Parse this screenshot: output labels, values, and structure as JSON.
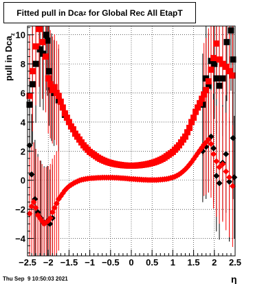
{
  "chart_data": {
    "type": "scatter",
    "title_main": "Fitted pull in Dca",
    "title_sub": "z",
    "title_tail": " for Global Rec All EtapT",
    "xlabel": "η",
    "ylabel_main": "pull in Dca",
    "ylabel_sub": "z",
    "xlim": [
      -2.5,
      2.5
    ],
    "ylim": [
      -5.2,
      10.6
    ],
    "grid": true,
    "x_ticks": [
      -2.5,
      -2,
      -1.5,
      -1,
      -0.5,
      0,
      0.5,
      1,
      1.5,
      2,
      2.5
    ],
    "x_tick_labels": [
      "−2.5",
      "−2",
      "−1.5",
      "−1",
      "−0.5",
      "0",
      "0.5",
      "1",
      "1.5",
      "2",
      "2.5"
    ],
    "y_ticks": [
      -4,
      -2,
      0,
      2,
      4,
      6,
      8,
      10
    ],
    "y_tick_labels": [
      "−4",
      "−2",
      "0",
      "2",
      "4",
      "6",
      "8",
      "10"
    ],
    "series": [
      {
        "marker": "square",
        "color": "#000000",
        "points": [
          [
            -2.45,
            5.2
          ],
          [
            -2.38,
            6.6
          ],
          [
            -2.3,
            8.0
          ],
          [
            -2.2,
            9.0
          ],
          [
            -2.12,
            8.7
          ],
          [
            -2.05,
            10.0
          ],
          [
            -2.02,
            9.6
          ],
          [
            -1.98,
            7.5
          ],
          [
            -1.92,
            6.4
          ],
          [
            -1.86,
            6.0
          ],
          [
            -1.75,
            5.5
          ],
          [
            -1.6,
            4.5
          ],
          [
            1.72,
            5.2
          ],
          [
            1.8,
            7.0
          ],
          [
            1.86,
            6.5
          ],
          [
            1.92,
            8.2
          ],
          [
            2.0,
            8.0
          ],
          [
            2.05,
            7.0
          ],
          [
            2.12,
            6.5
          ],
          [
            2.2,
            7.0
          ],
          [
            2.3,
            9.5
          ],
          [
            2.4,
            10.3
          ],
          [
            2.45,
            8.3
          ]
        ]
      },
      {
        "marker": "square",
        "color": "#ff0000",
        "points": [
          [
            -2.45,
            5.8
          ],
          [
            -2.38,
            7.5
          ],
          [
            -2.3,
            9.2
          ],
          [
            -2.22,
            10.4
          ],
          [
            -2.14,
            9.5
          ],
          [
            -2.06,
            8.5
          ],
          [
            -2.0,
            7.0
          ],
          [
            -1.95,
            6.6
          ],
          [
            -1.9,
            6.2
          ],
          [
            -1.85,
            6.4
          ],
          [
            -1.8,
            6.0
          ],
          [
            -1.75,
            5.8
          ],
          [
            -1.7,
            5.4
          ],
          [
            -1.65,
            5.0
          ],
          [
            -1.6,
            4.6
          ],
          [
            -1.55,
            4.3
          ],
          [
            -1.5,
            4.0
          ],
          [
            -1.45,
            3.7
          ],
          [
            -1.4,
            3.5
          ],
          [
            -1.35,
            3.2
          ],
          [
            -1.3,
            3.0
          ],
          [
            -1.25,
            2.8
          ],
          [
            -1.2,
            2.6
          ],
          [
            -1.15,
            2.4
          ],
          [
            -1.1,
            2.25
          ],
          [
            -1.05,
            2.1
          ],
          [
            -1.0,
            1.95
          ],
          [
            -0.95,
            1.85
          ],
          [
            -0.9,
            1.75
          ],
          [
            -0.85,
            1.65
          ],
          [
            -0.8,
            1.55
          ],
          [
            -0.75,
            1.47
          ],
          [
            -0.7,
            1.4
          ],
          [
            -0.65,
            1.34
          ],
          [
            -0.6,
            1.28
          ],
          [
            -0.55,
            1.23
          ],
          [
            -0.5,
            1.19
          ],
          [
            -0.45,
            1.15
          ],
          [
            -0.4,
            1.12
          ],
          [
            -0.35,
            1.09
          ],
          [
            -0.3,
            1.07
          ],
          [
            -0.25,
            1.05
          ],
          [
            -0.2,
            1.03
          ],
          [
            -0.15,
            1.02
          ],
          [
            -0.1,
            1.01
          ],
          [
            -0.05,
            1.0
          ],
          [
            0.0,
            1.0
          ],
          [
            0.05,
            1.0
          ],
          [
            0.1,
            1.01
          ],
          [
            0.15,
            1.02
          ],
          [
            0.2,
            1.03
          ],
          [
            0.25,
            1.05
          ],
          [
            0.3,
            1.07
          ],
          [
            0.35,
            1.09
          ],
          [
            0.4,
            1.12
          ],
          [
            0.45,
            1.15
          ],
          [
            0.5,
            1.19
          ],
          [
            0.55,
            1.23
          ],
          [
            0.6,
            1.28
          ],
          [
            0.65,
            1.34
          ],
          [
            0.7,
            1.4
          ],
          [
            0.75,
            1.47
          ],
          [
            0.8,
            1.55
          ],
          [
            0.85,
            1.65
          ],
          [
            0.9,
            1.75
          ],
          [
            0.95,
            1.85
          ],
          [
            1.0,
            1.95
          ],
          [
            1.05,
            2.1
          ],
          [
            1.1,
            2.25
          ],
          [
            1.15,
            2.4
          ],
          [
            1.2,
            2.6
          ],
          [
            1.25,
            2.8
          ],
          [
            1.3,
            3.0
          ],
          [
            1.35,
            3.3
          ],
          [
            1.4,
            3.6
          ],
          [
            1.45,
            4.0
          ],
          [
            1.5,
            4.3
          ],
          [
            1.55,
            4.7
          ],
          [
            1.6,
            5.0
          ],
          [
            1.65,
            5.3
          ],
          [
            1.7,
            5.6
          ],
          [
            1.75,
            5.9
          ],
          [
            1.8,
            6.2
          ],
          [
            1.86,
            6.8
          ],
          [
            1.92,
            7.6
          ],
          [
            1.98,
            8.4
          ],
          [
            2.05,
            9.4
          ],
          [
            2.12,
            8.3
          ],
          [
            2.2,
            8.0
          ],
          [
            2.28,
            7.8
          ],
          [
            2.36,
            7.5
          ],
          [
            2.44,
            7.2
          ]
        ]
      },
      {
        "marker": "diamond",
        "color": "#000000",
        "points": [
          [
            -2.45,
            2.4
          ],
          [
            -2.4,
            0.4
          ],
          [
            -2.32,
            -1.3
          ],
          [
            -2.25,
            -2.2
          ],
          [
            -2.18,
            -2.6
          ],
          [
            -2.1,
            -2.9
          ],
          [
            -2.02,
            -2.8
          ],
          [
            -1.96,
            -3.0
          ],
          [
            -1.9,
            -2.6
          ],
          [
            1.72,
            2.0
          ],
          [
            1.8,
            2.3
          ],
          [
            1.86,
            2.8
          ],
          [
            1.92,
            3.0
          ],
          [
            1.98,
            2.2
          ],
          [
            2.05,
            0.3
          ],
          [
            2.12,
            -0.2
          ],
          [
            2.2,
            1.2
          ],
          [
            2.28,
            1.8
          ],
          [
            2.36,
            -0.1
          ],
          [
            2.45,
            2.9
          ],
          [
            2.48,
            0.2
          ]
        ]
      },
      {
        "marker": "diamond",
        "color": "#ff0000",
        "points": [
          [
            -2.45,
            -2.3
          ],
          [
            -2.4,
            -1.8
          ],
          [
            -2.35,
            -1.5
          ],
          [
            -2.3,
            -1.9
          ],
          [
            -2.25,
            -2.4
          ],
          [
            -2.2,
            -2.6
          ],
          [
            -2.15,
            -2.8
          ],
          [
            -2.1,
            -3.0
          ],
          [
            -2.05,
            -2.9
          ],
          [
            -2.0,
            -2.8
          ],
          [
            -1.95,
            -2.6
          ],
          [
            -1.9,
            -2.2
          ],
          [
            -1.85,
            -1.9
          ],
          [
            -1.8,
            -1.6
          ],
          [
            -1.75,
            -1.3
          ],
          [
            -1.7,
            -1.1
          ],
          [
            -1.65,
            -0.9
          ],
          [
            -1.6,
            -0.7
          ],
          [
            -1.55,
            -0.55
          ],
          [
            -1.5,
            -0.42
          ],
          [
            -1.45,
            -0.32
          ],
          [
            -1.4,
            -0.23
          ],
          [
            -1.35,
            -0.15
          ],
          [
            -1.3,
            -0.08
          ],
          [
            -1.25,
            -0.02
          ],
          [
            -1.2,
            0.03
          ],
          [
            -1.15,
            0.06
          ],
          [
            -1.1,
            0.09
          ],
          [
            -1.05,
            0.11
          ],
          [
            -1.0,
            0.13
          ],
          [
            -0.95,
            0.14
          ],
          [
            -0.9,
            0.15
          ],
          [
            -0.85,
            0.16
          ],
          [
            -0.8,
            0.17
          ],
          [
            -0.75,
            0.17
          ],
          [
            -0.7,
            0.18
          ],
          [
            -0.65,
            0.18
          ],
          [
            -0.6,
            0.18
          ],
          [
            -0.55,
            0.18
          ],
          [
            -0.5,
            0.18
          ],
          [
            -0.45,
            0.18
          ],
          [
            -0.4,
            0.17
          ],
          [
            -0.35,
            0.17
          ],
          [
            -0.3,
            0.16
          ],
          [
            -0.25,
            0.15
          ],
          [
            -0.2,
            0.14
          ],
          [
            -0.15,
            0.13
          ],
          [
            -0.1,
            0.12
          ],
          [
            -0.05,
            0.1
          ],
          [
            0.0,
            0.09
          ],
          [
            0.05,
            0.08
          ],
          [
            0.1,
            0.07
          ],
          [
            0.15,
            0.06
          ],
          [
            0.2,
            0.05
          ],
          [
            0.25,
            0.04
          ],
          [
            0.3,
            0.03
          ],
          [
            0.35,
            0.03
          ],
          [
            0.4,
            0.02
          ],
          [
            0.45,
            0.02
          ],
          [
            0.5,
            0.02
          ],
          [
            0.55,
            0.02
          ],
          [
            0.6,
            0.02
          ],
          [
            0.65,
            0.03
          ],
          [
            0.7,
            0.04
          ],
          [
            0.75,
            0.05
          ],
          [
            0.8,
            0.07
          ],
          [
            0.85,
            0.09
          ],
          [
            0.9,
            0.12
          ],
          [
            0.95,
            0.16
          ],
          [
            1.0,
            0.2
          ],
          [
            1.05,
            0.25
          ],
          [
            1.1,
            0.32
          ],
          [
            1.15,
            0.4
          ],
          [
            1.2,
            0.5
          ],
          [
            1.25,
            0.62
          ],
          [
            1.3,
            0.75
          ],
          [
            1.35,
            0.9
          ],
          [
            1.4,
            1.07
          ],
          [
            1.45,
            1.25
          ],
          [
            1.5,
            1.45
          ],
          [
            1.55,
            1.65
          ],
          [
            1.6,
            1.85
          ],
          [
            1.65,
            2.05
          ],
          [
            1.7,
            2.25
          ],
          [
            1.75,
            2.45
          ],
          [
            1.8,
            2.6
          ],
          [
            1.86,
            2.8
          ],
          [
            1.92,
            2.5
          ],
          [
            1.98,
            1.8
          ],
          [
            2.05,
            1.3
          ],
          [
            2.12,
            0.9
          ],
          [
            2.2,
            1.1
          ],
          [
            2.28,
            0.6
          ],
          [
            2.36,
            0.2
          ],
          [
            2.44,
            -0.4
          ]
        ]
      }
    ]
  },
  "footer": {
    "timestamp": "Thu Sep  9 10:50:03 2021"
  }
}
